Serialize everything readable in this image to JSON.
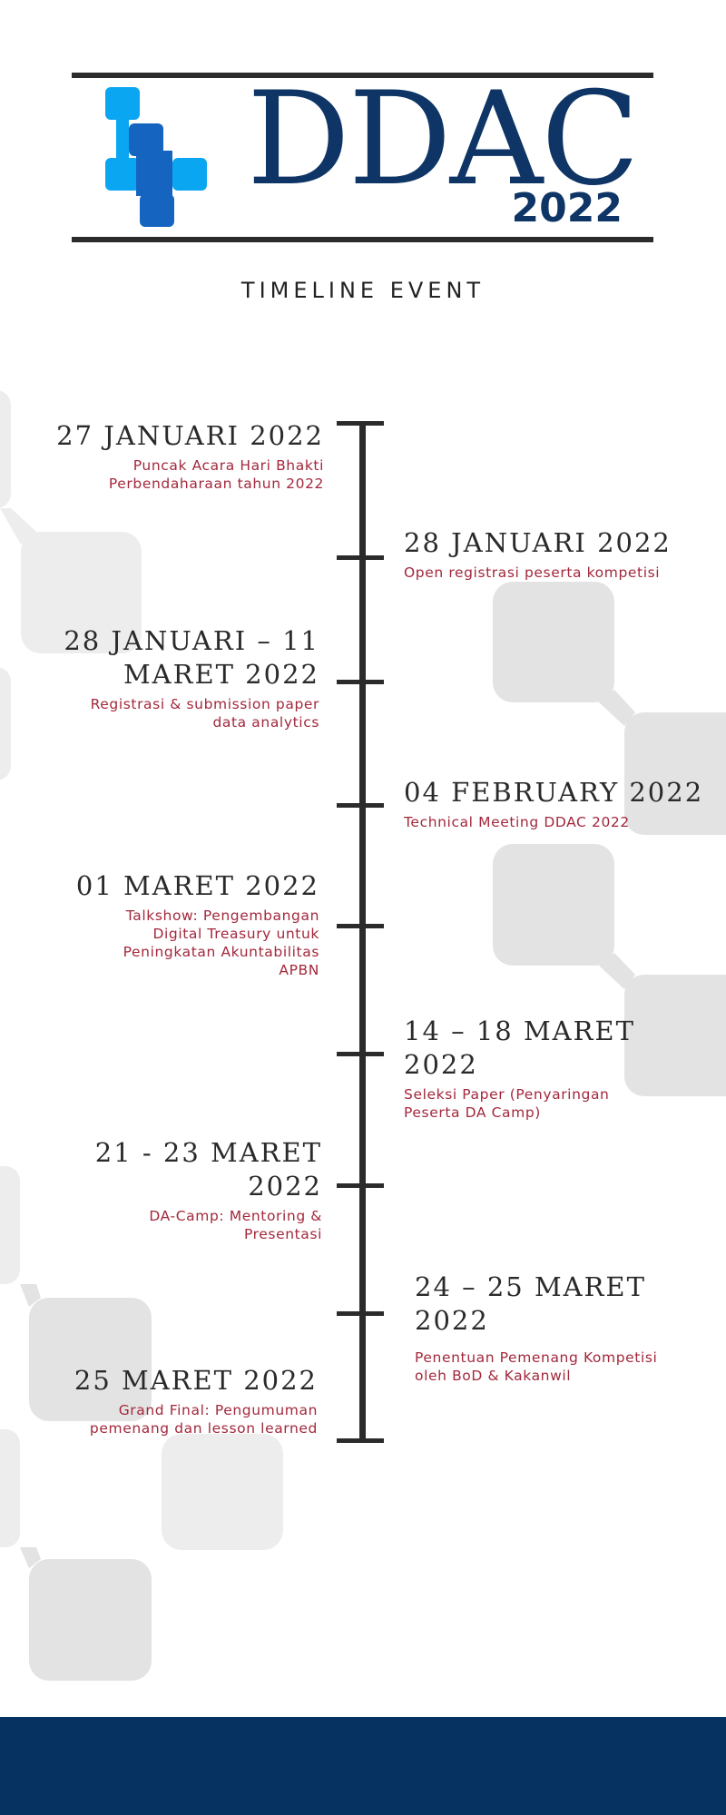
{
  "header": {
    "logo_text": "DDAC",
    "logo_year": "2022",
    "logo_icon": "cross-blocks-logo-icon",
    "subtitle": "TIMELINE EVENT"
  },
  "colors": {
    "navy": "#0e3566",
    "accent_text": "#a3283c",
    "logo_light_blue": "#0aa6f2",
    "logo_dark_blue": "#1565c0",
    "footer": "#053261"
  },
  "timeline": {
    "events": [
      {
        "date": "27 JANUARI 2022",
        "desc": "Puncak Acara Hari Bhakti Perbendaharaan tahun 2022"
      },
      {
        "date": "28 JANUARI 2022",
        "desc": "Open registrasi peserta kompetisi"
      },
      {
        "date": "28 JANUARI – 11 MARET 2022",
        "desc": "Registrasi & submission paper data analytics"
      },
      {
        "date": "04 FEBRUARY 2022",
        "desc": "Technical Meeting DDAC 2022"
      },
      {
        "date": "01 MARET 2022",
        "desc": "Talkshow: Pengembangan Digital Treasury untuk Peningkatan Akuntabilitas APBN"
      },
      {
        "date": "14 – 18 MARET 2022",
        "desc": "Seleksi Paper (Penyaringan Peserta DA Camp)"
      },
      {
        "date": "21 - 23 MARET 2022",
        "desc": "DA-Camp: Mentoring & Presentasi"
      },
      {
        "date": "24 – 25 MARET 2022",
        "desc": "Penentuan Pemenang Kompetisi oleh BoD & Kakanwil"
      },
      {
        "date": "25 MARET 2022",
        "desc": "Grand Final: Pengumuman pemenang dan lesson learned"
      }
    ]
  }
}
